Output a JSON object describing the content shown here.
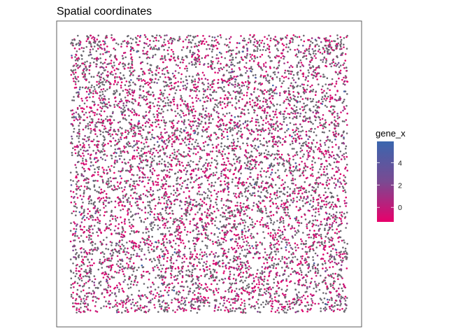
{
  "chart_data": {
    "type": "scatter",
    "title": "Spatial coordinates",
    "xlabel": "",
    "ylabel": "",
    "axes_shown": false,
    "grid": false,
    "panel_border": true,
    "xlim": [
      0,
      1
    ],
    "ylim": [
      0,
      1
    ],
    "point_count_approx": 7500,
    "color_variable": "gene_x",
    "color_scale": {
      "type": "gradient",
      "low_color": "#e8006b",
      "mid_color": "#7a4a92",
      "high_color": "#3a66ae",
      "limits": [
        -1.3,
        5.9
      ],
      "ticks": [
        0,
        2,
        4
      ],
      "tick_labels": [
        "0",
        "2",
        "4"
      ]
    },
    "value_distribution": {
      "description_of_colors_seen": "mostly grey-purple points with many magenta points, few blue",
      "low_value_color": "#e8006b",
      "common_value_color": "#6b6870"
    },
    "legend": {
      "title": "gene_x",
      "placement": "right"
    }
  }
}
